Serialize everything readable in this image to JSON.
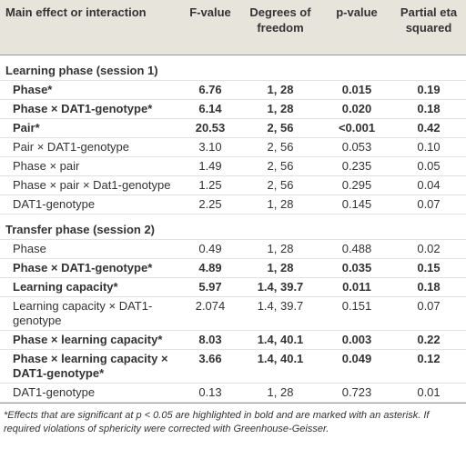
{
  "header": {
    "effect": "Main effect or interaction",
    "f": "F-value",
    "df": "Degrees of freedom",
    "p": "p-value",
    "eta": "Partial eta squared"
  },
  "sections": [
    {
      "title": "Learning phase (session 1)",
      "rows": [
        {
          "effect": "Phase*",
          "f": "6.76",
          "df": "1, 28",
          "p": "0.015",
          "eta": "0.19",
          "bold": true
        },
        {
          "effect": "Phase × DAT1-genotype*",
          "f": "6.14",
          "df": "1, 28",
          "p": "0.020",
          "eta": "0.18",
          "bold": true
        },
        {
          "effect": "Pair*",
          "f": "20.53",
          "df": "2, 56",
          "p": "<0.001",
          "eta": "0.42",
          "bold": true
        },
        {
          "effect": "Pair × DAT1-genotype",
          "f": "3.10",
          "df": "2, 56",
          "p": "0.053",
          "eta": "0.10",
          "bold": false
        },
        {
          "effect": "Phase × pair",
          "f": "1.49",
          "df": "2, 56",
          "p": "0.235",
          "eta": "0.05",
          "bold": false
        },
        {
          "effect": "Phase × pair × Dat1-genotype",
          "f": "1.25",
          "df": "2, 56",
          "p": "0.295",
          "eta": "0.04",
          "bold": false
        },
        {
          "effect": "DAT1-genotype",
          "f": "2.25",
          "df": "1, 28",
          "p": "0.145",
          "eta": "0.07",
          "bold": false
        }
      ]
    },
    {
      "title": "Transfer phase (session 2)",
      "rows": [
        {
          "effect": "Phase",
          "f": "0.49",
          "df": "1, 28",
          "p": "0.488",
          "eta": "0.02",
          "bold": false
        },
        {
          "effect": "Phase × DAT1-genotype*",
          "f": "4.89",
          "df": "1, 28",
          "p": "0.035",
          "eta": "0.15",
          "bold": true
        },
        {
          "effect": "Learning capacity*",
          "f": "5.97",
          "df": "1.4, 39.7",
          "p": "0.011",
          "eta": "0.18",
          "bold": true
        },
        {
          "effect": "Learning capacity × DAT1-genotype",
          "f": "2.074",
          "df": "1.4, 39.7",
          "p": "0.151",
          "eta": "0.07",
          "bold": false
        },
        {
          "effect": "Phase × learning capacity*",
          "f": "8.03",
          "df": "1.4, 40.1",
          "p": "0.003",
          "eta": "0.22",
          "bold": true
        },
        {
          "effect": "Phase × learning capacity × DAT1-genotype*",
          "f": "3.66",
          "df": "1.4, 40.1",
          "p": "0.049",
          "eta": "0.12",
          "bold": true
        },
        {
          "effect": "DAT1-genotype",
          "f": "0.13",
          "df": "1, 28",
          "p": "0.723",
          "eta": "0.01",
          "bold": false
        }
      ]
    }
  ],
  "footnote": "*Effects that are significant at p < 0.05 are highlighted in bold and are marked with an asterisk. If required violations of sphericity were corrected with Greenhouse-Geisser."
}
